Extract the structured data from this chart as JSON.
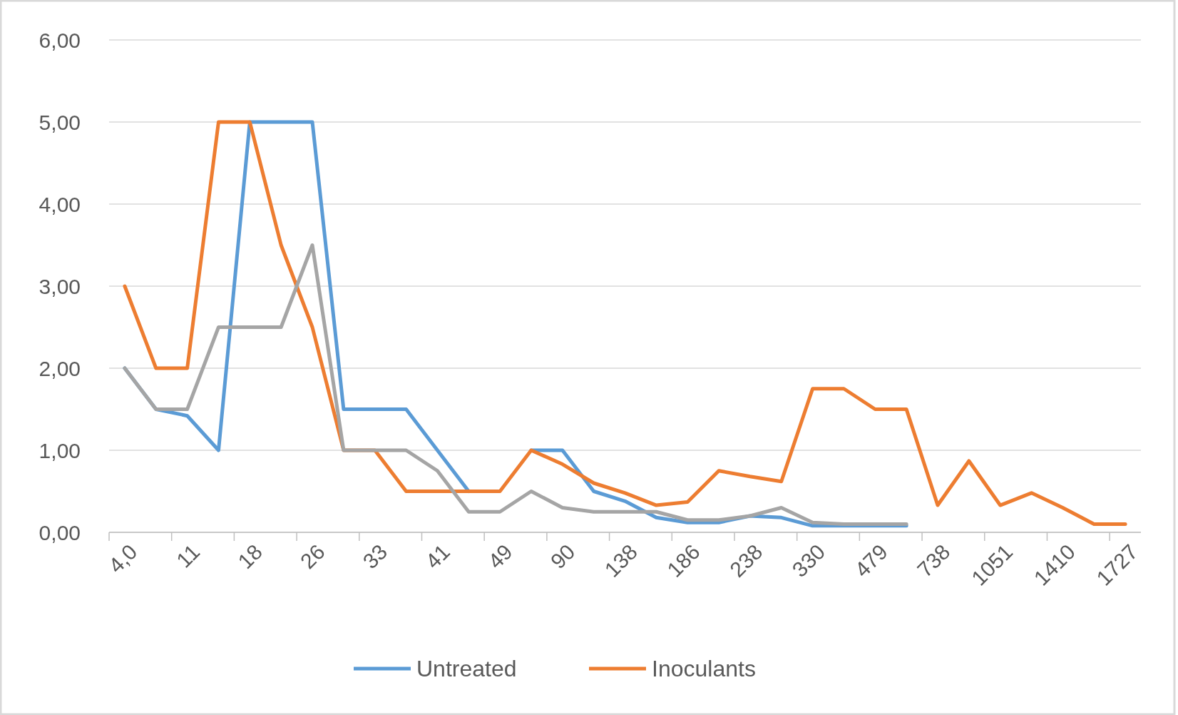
{
  "chart_data": {
    "type": "line",
    "categories": [
      "4,0",
      null,
      "11",
      null,
      "18",
      null,
      "26",
      null,
      "33",
      null,
      "41",
      null,
      "49",
      null,
      "90",
      null,
      "138",
      null,
      "186",
      null,
      "238",
      null,
      "330",
      null,
      "479",
      null,
      "738",
      null,
      "1051",
      null,
      "1410",
      null,
      "1727"
    ],
    "series": [
      {
        "name": "Untreated",
        "color": "#5b9bd5",
        "values": [
          2.0,
          1.5,
          1.42,
          1.0,
          5.0,
          5.0,
          5.0,
          1.5,
          1.5,
          1.5,
          1.0,
          0.5,
          null,
          1.0,
          1.0,
          0.5,
          0.38,
          0.18,
          0.12,
          0.12,
          0.2,
          0.18,
          0.08,
          0.08,
          0.08,
          0.08,
          null,
          null,
          null,
          null,
          null,
          null,
          null
        ]
      },
      {
        "name": "Inoculants",
        "color": "#ed7d31",
        "values": [
          3.0,
          2.0,
          2.0,
          5.0,
          5.0,
          3.5,
          2.5,
          1.0,
          1.0,
          0.5,
          0.5,
          0.5,
          0.5,
          1.0,
          0.83,
          0.6,
          0.48,
          0.33,
          0.37,
          0.75,
          0.68,
          0.62,
          1.75,
          1.75,
          1.5,
          1.5,
          0.33,
          0.87,
          0.33,
          0.48,
          0.3,
          0.1,
          0.1
        ]
      },
      {
        "color": "#a5a5a5",
        "values": [
          2.0,
          1.5,
          1.5,
          2.5,
          2.5,
          2.5,
          3.5,
          1.0,
          1.0,
          1.0,
          0.75,
          0.25,
          0.25,
          0.5,
          0.3,
          0.25,
          0.25,
          0.25,
          0.15,
          0.15,
          0.2,
          0.3,
          0.12,
          0.1,
          0.1,
          0.1,
          null,
          null,
          null,
          null,
          null,
          null,
          null
        ]
      }
    ],
    "ylim": [
      0,
      6
    ],
    "yticks": [
      {
        "value": 0,
        "label": "0,00"
      },
      {
        "value": 1,
        "label": "1,00"
      },
      {
        "value": 2,
        "label": "2,00"
      },
      {
        "value": 3,
        "label": "3,00"
      },
      {
        "value": 4,
        "label": "4,00"
      },
      {
        "value": 5,
        "label": "5,00"
      },
      {
        "value": 6,
        "label": "6,00"
      }
    ],
    "grid": "y",
    "legend": "bottom",
    "line_style": "solid"
  }
}
